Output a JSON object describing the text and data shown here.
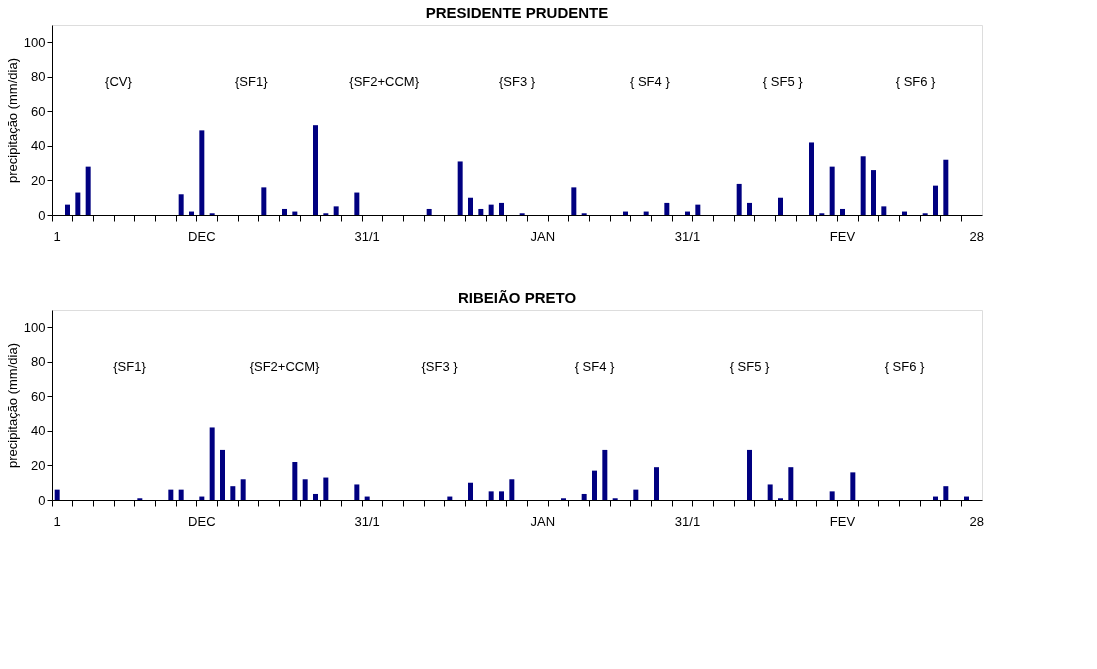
{
  "chart_data": [
    {
      "type": "bar",
      "title": "PRESIDENTE PRUDENTE",
      "ylabel": "precipitação (mm/dia)",
      "categories": [
        "1",
        null,
        null,
        null,
        null,
        null,
        null,
        null,
        null,
        null,
        null,
        null,
        null,
        null,
        "DEC",
        null,
        null,
        null,
        null,
        null,
        null,
        null,
        null,
        null,
        null,
        null,
        null,
        null,
        null,
        null,
        "31/1",
        null,
        null,
        null,
        null,
        null,
        null,
        null,
        null,
        null,
        null,
        null,
        null,
        null,
        null,
        null,
        null,
        "JAN",
        null,
        null,
        null,
        null,
        null,
        null,
        null,
        null,
        null,
        null,
        null,
        null,
        null,
        "31/1",
        null,
        null,
        null,
        null,
        null,
        null,
        null,
        null,
        null,
        null,
        null,
        null,
        null,
        null,
        "FEV",
        null,
        null,
        null,
        null,
        null,
        null,
        null,
        null,
        null,
        null,
        null,
        null,
        "28"
      ],
      "series": [
        {
          "color": "#000080",
          "values": [
            0,
            6,
            13,
            28,
            0,
            0,
            0,
            0,
            0,
            0,
            0,
            0,
            12,
            2,
            49,
            1,
            0,
            0,
            0,
            0,
            16,
            0,
            3.5,
            2,
            0,
            52,
            1,
            5,
            0,
            13,
            0,
            0,
            0,
            0,
            0,
            0,
            3.5,
            0,
            0,
            31,
            10,
            3.5,
            6,
            7,
            0,
            1,
            0,
            0,
            0,
            0,
            16,
            1,
            0,
            0,
            0,
            2,
            0,
            2,
            0,
            7,
            0,
            2,
            6,
            0,
            0,
            0,
            18,
            7,
            0,
            0,
            10,
            0,
            0,
            42,
            1,
            28,
            3.5,
            0,
            34,
            26,
            5,
            0,
            2,
            0,
            1,
            17,
            32,
            0,
            0,
            0
          ]
        }
      ],
      "ylim": [
        0,
        110
      ],
      "yticks": [
        0,
        20,
        40,
        60,
        80,
        100
      ],
      "annotations": [
        "{CV}",
        "{SF1}",
        "{SF2+CCM}",
        "{SF3 }",
        "{   SF4   }",
        "{ SF5 }",
        "{   SF6   }"
      ]
    },
    {
      "type": "bar",
      "title": "RIBEIÃO PRETO",
      "ylabel": "precipitação (mm/dia)",
      "categories": [
        "1",
        null,
        null,
        null,
        null,
        null,
        null,
        null,
        null,
        null,
        null,
        null,
        null,
        null,
        "DEC",
        null,
        null,
        null,
        null,
        null,
        null,
        null,
        null,
        null,
        null,
        null,
        null,
        null,
        null,
        null,
        "31/1",
        null,
        null,
        null,
        null,
        null,
        null,
        null,
        null,
        null,
        null,
        null,
        null,
        null,
        null,
        null,
        null,
        "JAN",
        null,
        null,
        null,
        null,
        null,
        null,
        null,
        null,
        null,
        null,
        null,
        null,
        null,
        "31/1",
        null,
        null,
        null,
        null,
        null,
        null,
        null,
        null,
        null,
        null,
        null,
        null,
        null,
        null,
        "FEV",
        null,
        null,
        null,
        null,
        null,
        null,
        null,
        null,
        null,
        null,
        null,
        null,
        "28"
      ],
      "series": [
        {
          "color": "#000080",
          "values": [
            6,
            0,
            0,
            0,
            0,
            0,
            0,
            0,
            1,
            0,
            0,
            6,
            6,
            0,
            2,
            42,
            29,
            8,
            12,
            0,
            0,
            0,
            0,
            22,
            12,
            3.5,
            13,
            0,
            0,
            9,
            2,
            0,
            0,
            0,
            0,
            0,
            0,
            0,
            2,
            0,
            10,
            0,
            5,
            5,
            12,
            0,
            0,
            0,
            0,
            1,
            0,
            3.5,
            17,
            29,
            1,
            0,
            6,
            0,
            19,
            0,
            0,
            0,
            0,
            0,
            0,
            0,
            0,
            29,
            0,
            9,
            1,
            19,
            0,
            0,
            0,
            5,
            0,
            16,
            0,
            0,
            0,
            0,
            0,
            0,
            0,
            2,
            8,
            0,
            2,
            0
          ]
        }
      ],
      "ylim": [
        0,
        110
      ],
      "yticks": [
        0,
        20,
        40,
        60,
        80,
        100
      ],
      "annotations": [
        "{SF1}",
        "{SF2+CCM}",
        "{SF3 }",
        "{   SF4   }",
        "{ SF5 }",
        "{   SF6   }"
      ]
    }
  ]
}
